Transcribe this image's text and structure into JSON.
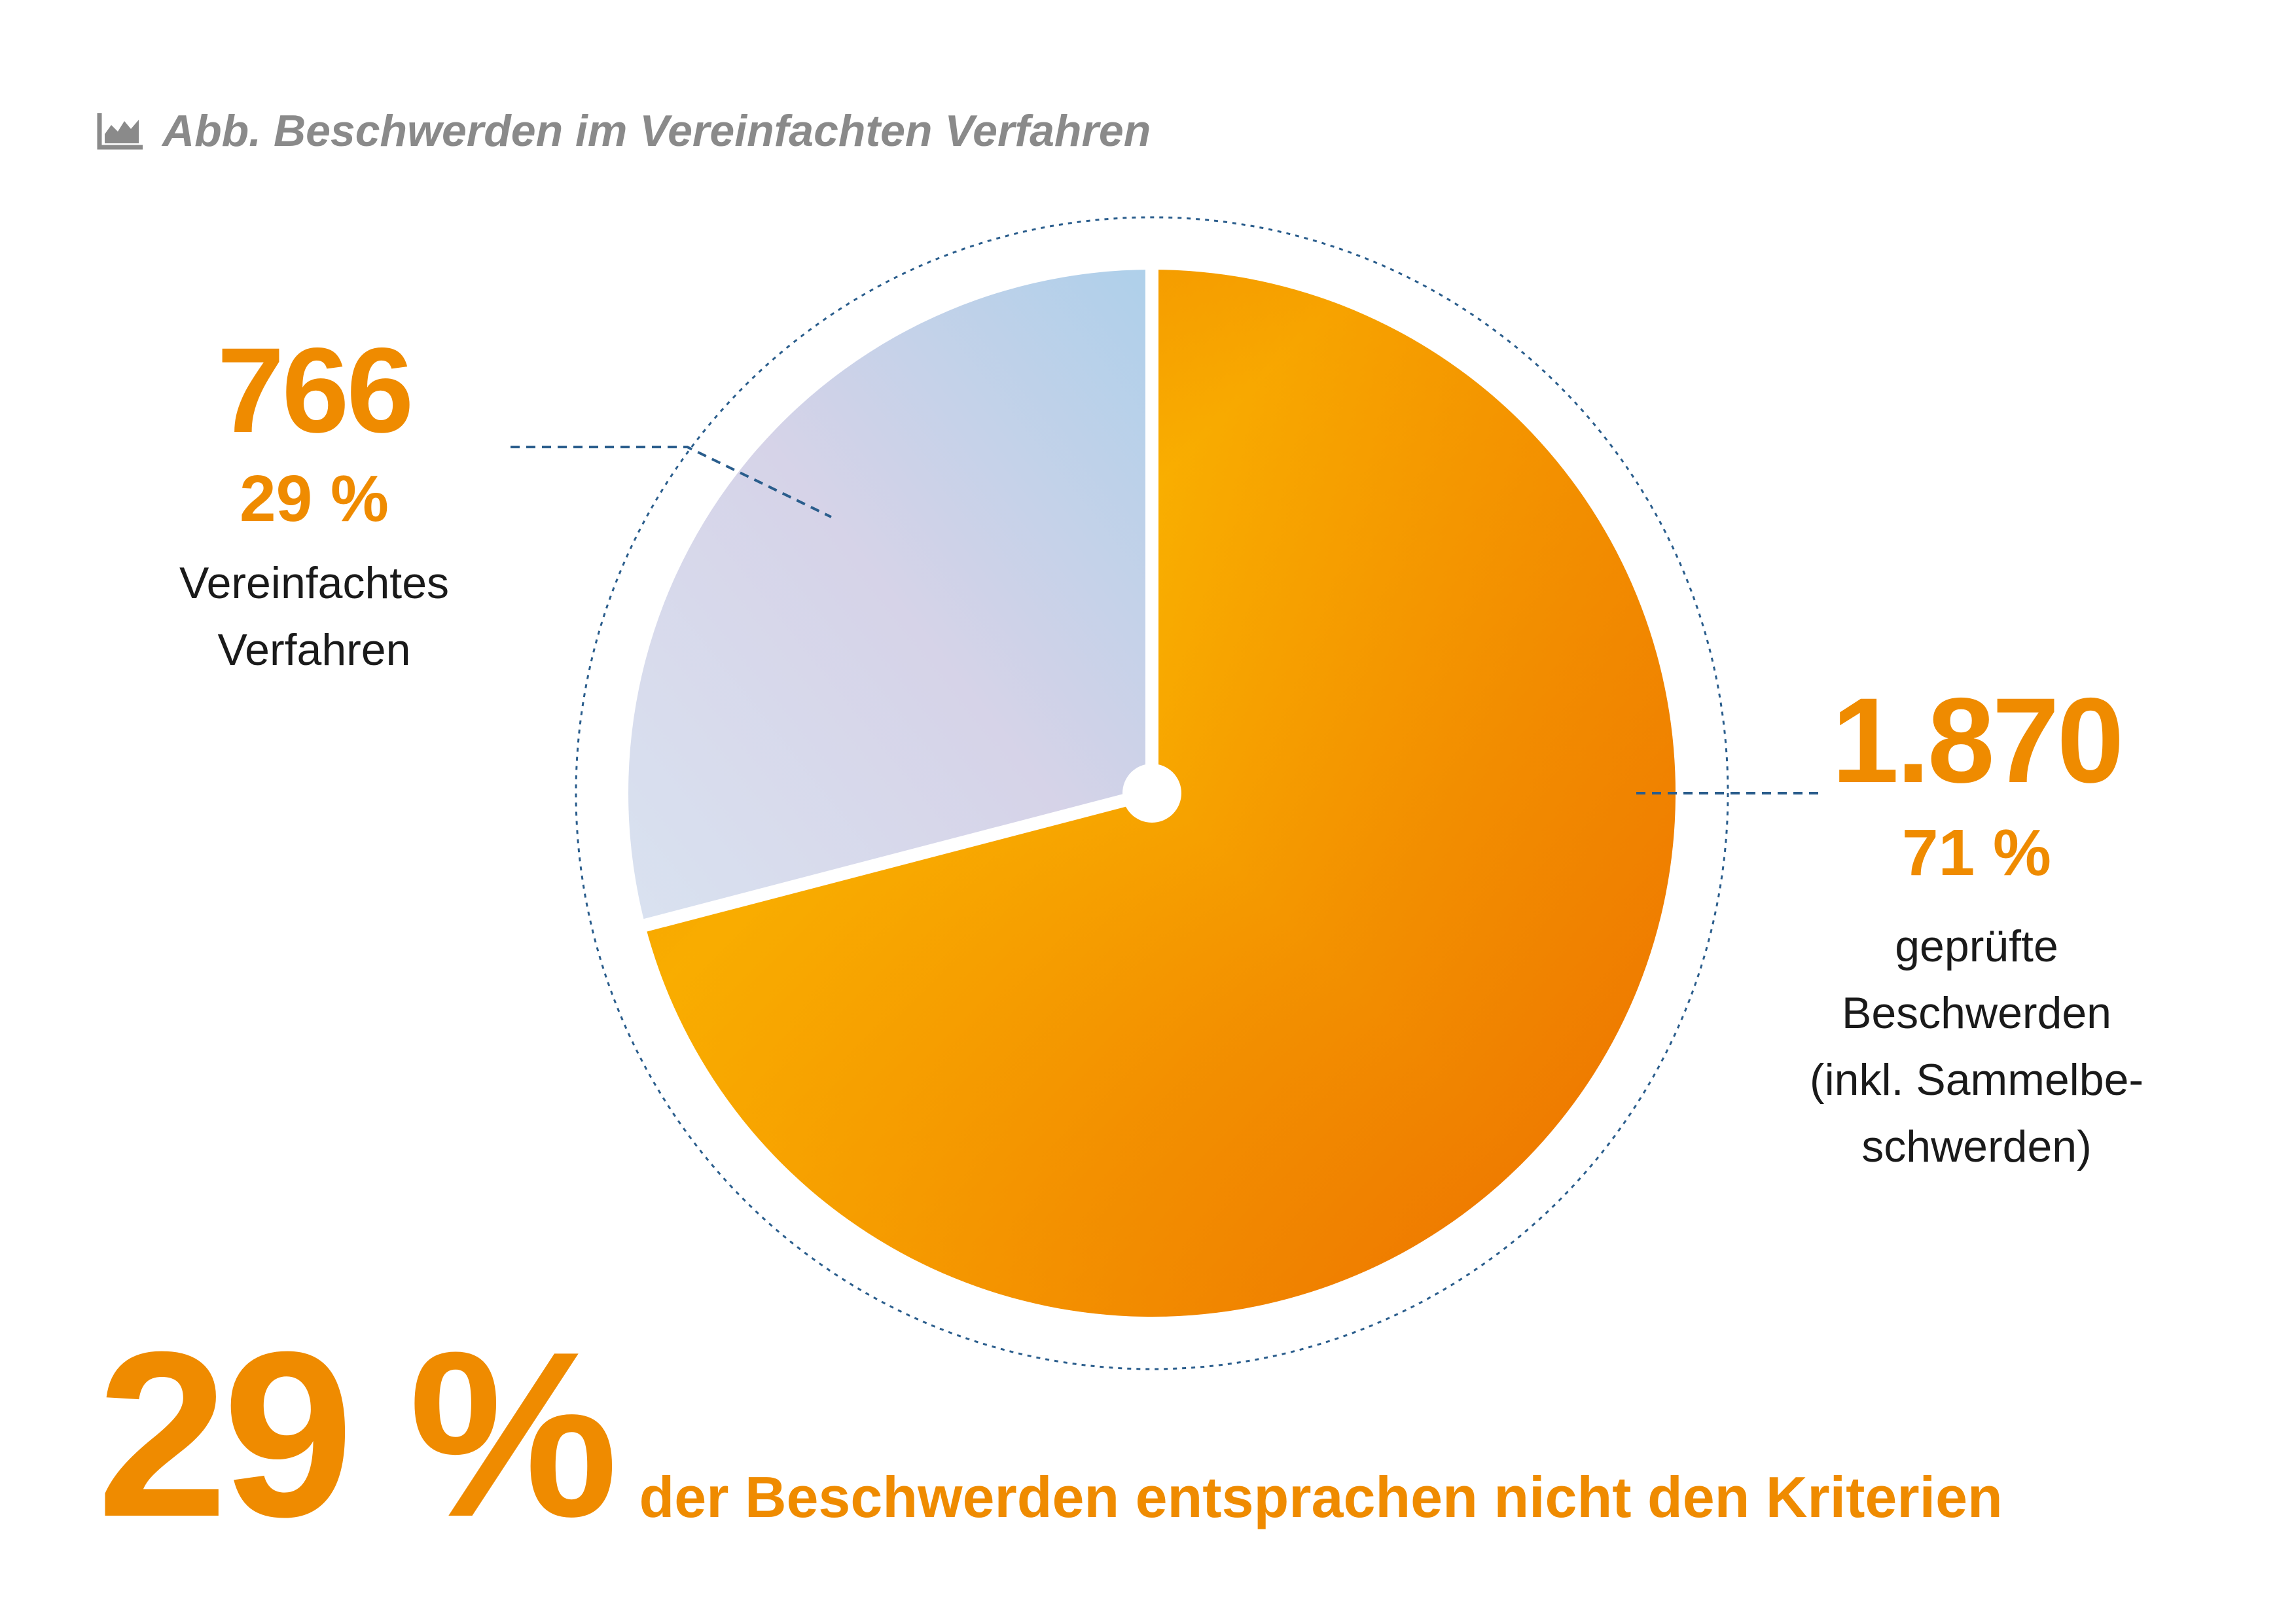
{
  "caption": {
    "icon": "area-chart-icon",
    "text": "Abb. Beschwerden im Vereinfachten Verfahren"
  },
  "colors": {
    "accent": "#ef8b00",
    "orange_light": "#fbb800",
    "orange_dark": "#ec6d00",
    "blue_light": "#aed0ea",
    "lavender": "#d8d5e9",
    "leader_line": "#2a5d8c",
    "caption_gray": "#8a8a8a"
  },
  "chart_data": {
    "type": "pie",
    "title": "Abb. Beschwerden im Vereinfachten Verfahren",
    "slices": [
      {
        "value": 1870,
        "value_label": "1.870",
        "percent": 71,
        "percent_label": "71 %",
        "label": "geprüfte\nBeschwerden\n(inkl. Sammelbe-\nschwerden)",
        "color": "#f39200"
      },
      {
        "value": 766,
        "value_label": "766",
        "percent": 29,
        "percent_label": "29 %",
        "label": "Vereinfachtes\nVerfahren",
        "color": "#c9d4ea"
      }
    ]
  },
  "summary": {
    "percent": "29 %",
    "text": "der Beschwerden entsprachen nicht den Kriterien"
  }
}
